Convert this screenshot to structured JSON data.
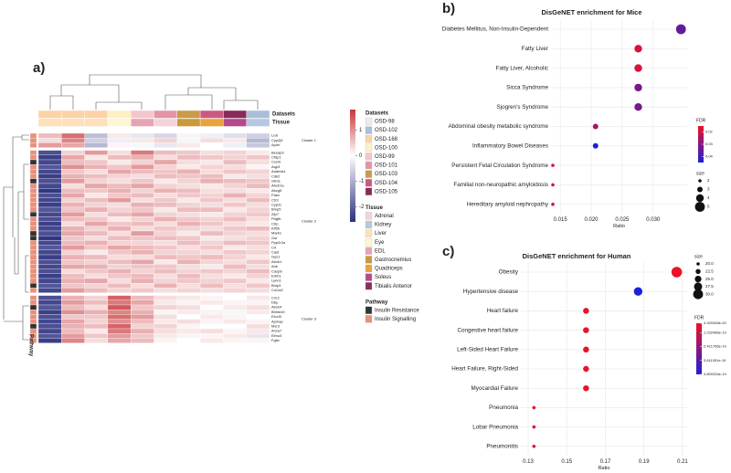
{
  "chart_data": [
    {
      "type": "heatmap",
      "panel": "a)",
      "row_labels": [
        "Lrat",
        "Cyp2j5",
        "Apoh",
        "Besap3",
        "Cfdp1",
        "Cxcl4",
        "Aqp3",
        "Adamts1",
        "Cdk2",
        "Gfra1",
        "Abcb1a",
        "Abcg5",
        "Fasn",
        "Ctr3",
        "Cyp2c",
        "Bmp5",
        "Zfp7",
        "Pdgfb",
        "Ctrp",
        "Kif5b",
        "Mark1",
        "Gsr",
        "Ppp2r2a",
        "C4",
        "Cast",
        "Gys1",
        "Abcb1",
        "Ank",
        "Casp8",
        "Erbb1",
        "Lynn1",
        "Bnip3",
        "Col1a2",
        "Cnr2",
        "Dbp",
        "Abcb4",
        "Bhlhe40",
        "Elovl3",
        "Apmap",
        "Msr3",
        "Anxa7",
        "Elmo3",
        "Fgfw"
      ],
      "row_cluster": [
        0,
        0,
        0,
        1,
        1,
        1,
        1,
        1,
        1,
        1,
        1,
        1,
        1,
        1,
        1,
        1,
        1,
        1,
        1,
        1,
        1,
        1,
        1,
        1,
        1,
        1,
        1,
        1,
        1,
        1,
        1,
        1,
        1,
        2,
        2,
        2,
        2,
        2,
        2,
        2,
        2,
        2,
        2
      ],
      "cluster_labels": [
        "Cluster 1",
        "Cluster 2",
        "Cluster 3"
      ],
      "row_pathway": [
        1,
        1,
        1,
        1,
        1,
        0,
        1,
        1,
        1,
        0,
        1,
        1,
        1,
        1,
        1,
        1,
        0,
        1,
        1,
        1,
        0,
        0,
        1,
        1,
        1,
        1,
        1,
        1,
        1,
        1,
        1,
        0,
        1,
        1,
        1,
        0,
        1,
        1,
        1,
        0,
        1,
        1,
        1
      ],
      "values": [
        [
          0.6,
          1.3,
          -0.8,
          0.2,
          -0.3,
          -0.5,
          0.1,
          -0.2,
          -0.4,
          -0.6
        ],
        [
          0.3,
          1.1,
          -0.6,
          -0.2,
          0.2,
          0.4,
          -0.1,
          0.3,
          0.2,
          -0.9
        ],
        [
          0.9,
          0.8,
          -0.9,
          0.1,
          -0.1,
          -0.3,
          0.2,
          0.0,
          -0.2,
          -0.7
        ],
        [
          -2.2,
          0.4,
          0.9,
          0.3,
          1.2,
          0.6,
          0.5,
          0.3,
          0.4,
          0.2
        ],
        [
          -2.4,
          0.8,
          0.2,
          0.6,
          0.7,
          0.3,
          0.6,
          0.5,
          0.4,
          0.5
        ],
        [
          -2.3,
          0.6,
          0.5,
          0.2,
          0.4,
          0.8,
          0.3,
          0.2,
          0.6,
          0.3
        ],
        [
          -2.1,
          1.0,
          0.7,
          0.5,
          0.9,
          0.4,
          0.2,
          0.4,
          0.3,
          0.1
        ],
        [
          -2.3,
          0.5,
          0.3,
          0.8,
          0.6,
          0.5,
          0.7,
          0.3,
          0.5,
          0.4
        ],
        [
          -2.4,
          0.7,
          0.6,
          0.4,
          0.3,
          0.6,
          0.5,
          0.6,
          0.2,
          0.3
        ],
        [
          -2.2,
          0.9,
          0.4,
          0.3,
          0.5,
          0.2,
          0.4,
          0.7,
          0.6,
          0.5
        ],
        [
          -2.3,
          0.3,
          0.8,
          0.6,
          0.8,
          0.4,
          0.3,
          0.2,
          0.4,
          0.6
        ],
        [
          -2.5,
          0.6,
          0.5,
          0.7,
          0.4,
          0.7,
          0.6,
          0.3,
          0.3,
          0.2
        ],
        [
          -2.2,
          0.8,
          0.2,
          0.5,
          0.6,
          0.3,
          0.5,
          0.4,
          0.7,
          0.4
        ],
        [
          -2.3,
          0.4,
          0.6,
          0.9,
          0.3,
          0.5,
          0.2,
          0.5,
          0.3,
          0.6
        ],
        [
          -2.4,
          0.7,
          0.4,
          0.3,
          0.7,
          0.6,
          0.4,
          0.3,
          0.5,
          0.3
        ],
        [
          -2.1,
          0.5,
          0.7,
          0.4,
          0.5,
          0.2,
          0.6,
          0.6,
          0.2,
          0.4
        ],
        [
          -2.3,
          0.9,
          0.3,
          0.6,
          0.8,
          0.4,
          0.3,
          0.2,
          0.4,
          0.5
        ],
        [
          -2.2,
          0.6,
          0.5,
          0.2,
          0.4,
          0.7,
          0.5,
          0.4,
          0.6,
          0.3
        ],
        [
          -2.4,
          0.3,
          0.8,
          0.5,
          0.6,
          0.3,
          0.7,
          0.5,
          0.3,
          0.2
        ],
        [
          -2.3,
          0.7,
          0.4,
          0.7,
          0.3,
          0.5,
          0.4,
          0.3,
          0.5,
          0.6
        ],
        [
          -2.2,
          0.8,
          0.6,
          0.3,
          0.9,
          0.4,
          0.2,
          0.6,
          0.4,
          0.3
        ],
        [
          -2.5,
          0.5,
          0.3,
          0.6,
          0.5,
          0.6,
          0.5,
          0.2,
          0.3,
          0.4
        ],
        [
          -2.3,
          0.6,
          0.7,
          0.4,
          0.4,
          0.3,
          0.6,
          0.4,
          0.6,
          0.5
        ],
        [
          -2.1,
          0.9,
          0.5,
          0.8,
          0.6,
          0.5,
          0.3,
          0.5,
          0.2,
          0.3
        ],
        [
          -2.3,
          0.4,
          0.2,
          0.5,
          0.7,
          0.4,
          0.4,
          0.3,
          0.5,
          0.4
        ],
        [
          -2.4,
          0.7,
          0.6,
          0.3,
          0.3,
          0.6,
          0.5,
          0.6,
          0.4,
          0.2
        ],
        [
          -2.2,
          0.5,
          0.4,
          0.6,
          0.8,
          0.2,
          0.7,
          0.4,
          0.3,
          0.5
        ],
        [
          -2.3,
          0.8,
          0.7,
          0.4,
          0.5,
          0.5,
          0.3,
          0.2,
          0.6,
          0.3
        ],
        [
          -2.2,
          0.3,
          0.5,
          0.7,
          0.4,
          0.6,
          0.4,
          0.5,
          0.4,
          0.6
        ],
        [
          -2.4,
          0.6,
          0.3,
          0.5,
          0.6,
          0.3,
          0.6,
          0.3,
          0.2,
          0.4
        ],
        [
          -2.3,
          0.7,
          0.8,
          0.3,
          0.7,
          0.4,
          0.5,
          0.4,
          0.5,
          0.2
        ],
        [
          -2.1,
          0.5,
          0.4,
          0.6,
          0.3,
          0.7,
          0.3,
          0.6,
          0.3,
          0.5
        ],
        [
          -2.3,
          0.9,
          0.6,
          0.4,
          0.5,
          0.3,
          0.4,
          0.3,
          0.4,
          0.3
        ],
        [
          -2.2,
          0.7,
          0.4,
          1.4,
          0.6,
          0.3,
          0.2,
          0.1,
          0.0,
          0.2
        ],
        [
          -2.3,
          0.9,
          0.6,
          1.2,
          0.8,
          0.2,
          0.1,
          0.2,
          0.1,
          0.1
        ],
        [
          -2.1,
          0.6,
          0.3,
          1.5,
          0.5,
          0.4,
          0.3,
          0.0,
          0.2,
          0.3
        ],
        [
          -2.4,
          1.0,
          0.7,
          1.1,
          0.7,
          0.1,
          0.2,
          0.1,
          -0.1,
          0.2
        ],
        [
          -2.2,
          0.5,
          0.5,
          1.3,
          0.9,
          0.3,
          0.0,
          0.2,
          0.1,
          0.0
        ],
        [
          -2.3,
          0.8,
          0.4,
          1.0,
          0.6,
          0.2,
          0.3,
          0.1,
          0.2,
          0.1
        ],
        [
          -2.2,
          0.7,
          0.6,
          1.4,
          0.4,
          0.4,
          0.1,
          0.0,
          0.0,
          0.3
        ],
        [
          -2.3,
          0.6,
          0.2,
          1.2,
          0.7,
          0.3,
          0.2,
          0.3,
          0.1,
          0.2
        ],
        [
          -2.1,
          0.9,
          0.5,
          0.9,
          0.5,
          0.2,
          0.1,
          0.1,
          0.2,
          -0.3
        ],
        [
          -2.4,
          1.1,
          0.3,
          0.8,
          0.6,
          0.1,
          0.0,
          0.2,
          0.1,
          0.1
        ]
      ],
      "columns_dataset": [
        2,
        2,
        2,
        3,
        4,
        5,
        6,
        7,
        8,
        1
      ],
      "columns_tissue": [
        2,
        2,
        2,
        3,
        4,
        0,
        5,
        6,
        7,
        1
      ],
      "scale": {
        "lim": [
          -2.6,
          1.8
        ],
        "ticks": [
          1,
          0,
          -1,
          -2
        ],
        "colors": [
          "#2b2f7e",
          "#ffffff",
          "#c8373b"
        ]
      },
      "datasets": {
        "title": "Datasets",
        "names": [
          "OSD-98",
          "OSD-102",
          "OSD-168",
          "OSD-100",
          "OSD-99",
          "OSD-101",
          "OSD-103",
          "OSD-104",
          "OSD-105"
        ],
        "colors": [
          "#ececec",
          "#a9bfd9",
          "#fdd2a6",
          "#fdf1c4",
          "#f4c6cc",
          "#e495a5",
          "#c99b4a",
          "#cc5a80",
          "#8a2a5a"
        ]
      },
      "tissue": {
        "title": "Tissue",
        "names": [
          "Adrenal",
          "Kidney",
          "Liver",
          "Eye",
          "EDL",
          "Gastrocnemius",
          "Quadriceps",
          "Soleus",
          "Tibialis Anterior"
        ],
        "colors": [
          "#f3d3d9",
          "#b6c8e0",
          "#fde0b8",
          "#fdf7d2",
          "#e7a3b4",
          "#c89a3c",
          "#e8a33a",
          "#b5498a",
          "#8b2e5c"
        ]
      },
      "pathway": {
        "title": "Pathway",
        "names": [
          "Insulin Resistance",
          "Insulin Signalling"
        ],
        "colors": [
          "#333333",
          "#e8907a"
        ]
      }
    },
    {
      "type": "dot",
      "panel": "b)",
      "title": "DisGeNET enrichment for Mice",
      "x_label": "Ratio",
      "categories": [
        "Diabetes Mellitus, Non-Insulin-Dependent",
        "Fatty Liver",
        "Fatty Liver, Alcoholic",
        "Sicca Syndrome",
        "Sjogren's Syndrome",
        "Abdominal obesity metabolic syndrome",
        "Inflammatory Bowel Diseases",
        "Persistent Fetal Circulation Syndrome",
        "Familial non-neuropathic amyloidosis",
        "Hereditary amyloid nephropathy"
      ],
      "values": [
        0.0345,
        0.0276,
        0.0276,
        0.0276,
        0.0276,
        0.0207,
        0.0207,
        0.0138,
        0.0138,
        0.0138
      ],
      "sizes": [
        5,
        4,
        4,
        4,
        4,
        3,
        3,
        2,
        2,
        2
      ],
      "fdr": [
        0.035,
        0.018,
        0.018,
        0.032,
        0.032,
        0.025,
        0.045,
        0.018,
        0.018,
        0.018
      ],
      "xlim": [
        0.0135,
        0.0355
      ],
      "xticks": [
        {
          "value": 0.015,
          "label": "0.015"
        },
        {
          "value": 0.02,
          "label": "0.020"
        },
        {
          "value": 0.025,
          "label": "0.025"
        },
        {
          "value": 0.03,
          "label": "0.030"
        }
      ],
      "grid": true,
      "fdr_title": "FDR",
      "fdrlim": [
        0.015,
        0.045
      ],
      "fdr_ticks": [
        0.02,
        0.03,
        0.04
      ],
      "fdr_colors": [
        "#ee1128",
        "#1f1fd8"
      ],
      "size_title": "size",
      "size_ticks": [
        2,
        3,
        4,
        5
      ]
    },
    {
      "type": "dot",
      "panel": "c)",
      "title": "DisGeNET enrichment for Human",
      "x_label": "Ratio",
      "categories": [
        "Obesity",
        "Hypertensive disease",
        "Heart failure",
        "Congestive heart failure",
        "Left-Sided Heart Failure",
        "Heart Failure, Right-Sided",
        "Myocardial Failure",
        "Pneumonia",
        "Lobar Pneumonia",
        "Pneumonitis"
      ],
      "values": [
        0.207,
        0.187,
        0.16,
        0.16,
        0.16,
        0.16,
        0.16,
        0.133,
        0.133,
        0.133
      ],
      "sizes": [
        31,
        28,
        24,
        24,
        24,
        24,
        24,
        20,
        20,
        20
      ],
      "fdr": [
        4.4e-20,
        4.8e-19,
        5e-20,
        5e-20,
        5e-20,
        5e-20,
        5e-20,
        6e-20,
        6e-20,
        6e-20
      ],
      "xlim": [
        0.1262,
        0.2124
      ],
      "xticks": [
        0.13,
        0.15,
        0.17,
        0.19,
        0.21
      ],
      "grid": true,
      "fdr_title": "FDR",
      "fdrlim": [
        4.320348e-20,
        4.800334e-19
      ],
      "fdr_ticks": [
        4.320348e-20,
        1.232486e-19,
        2.421766e-19,
        3.611051e-19,
        4.800334e-19
      ],
      "fdr_colors": [
        "#ee1128",
        "#1f1fd8"
      ],
      "size_title": "size",
      "size_ticks": [
        {
          "value": 20,
          "label": "20.0"
        },
        {
          "value": 22.5,
          "label": "22.5"
        },
        {
          "value": 25,
          "label": "25.0"
        },
        {
          "value": 27.5,
          "label": "27.5"
        },
        {
          "value": 30,
          "label": "30.0"
        }
      ]
    }
  ]
}
